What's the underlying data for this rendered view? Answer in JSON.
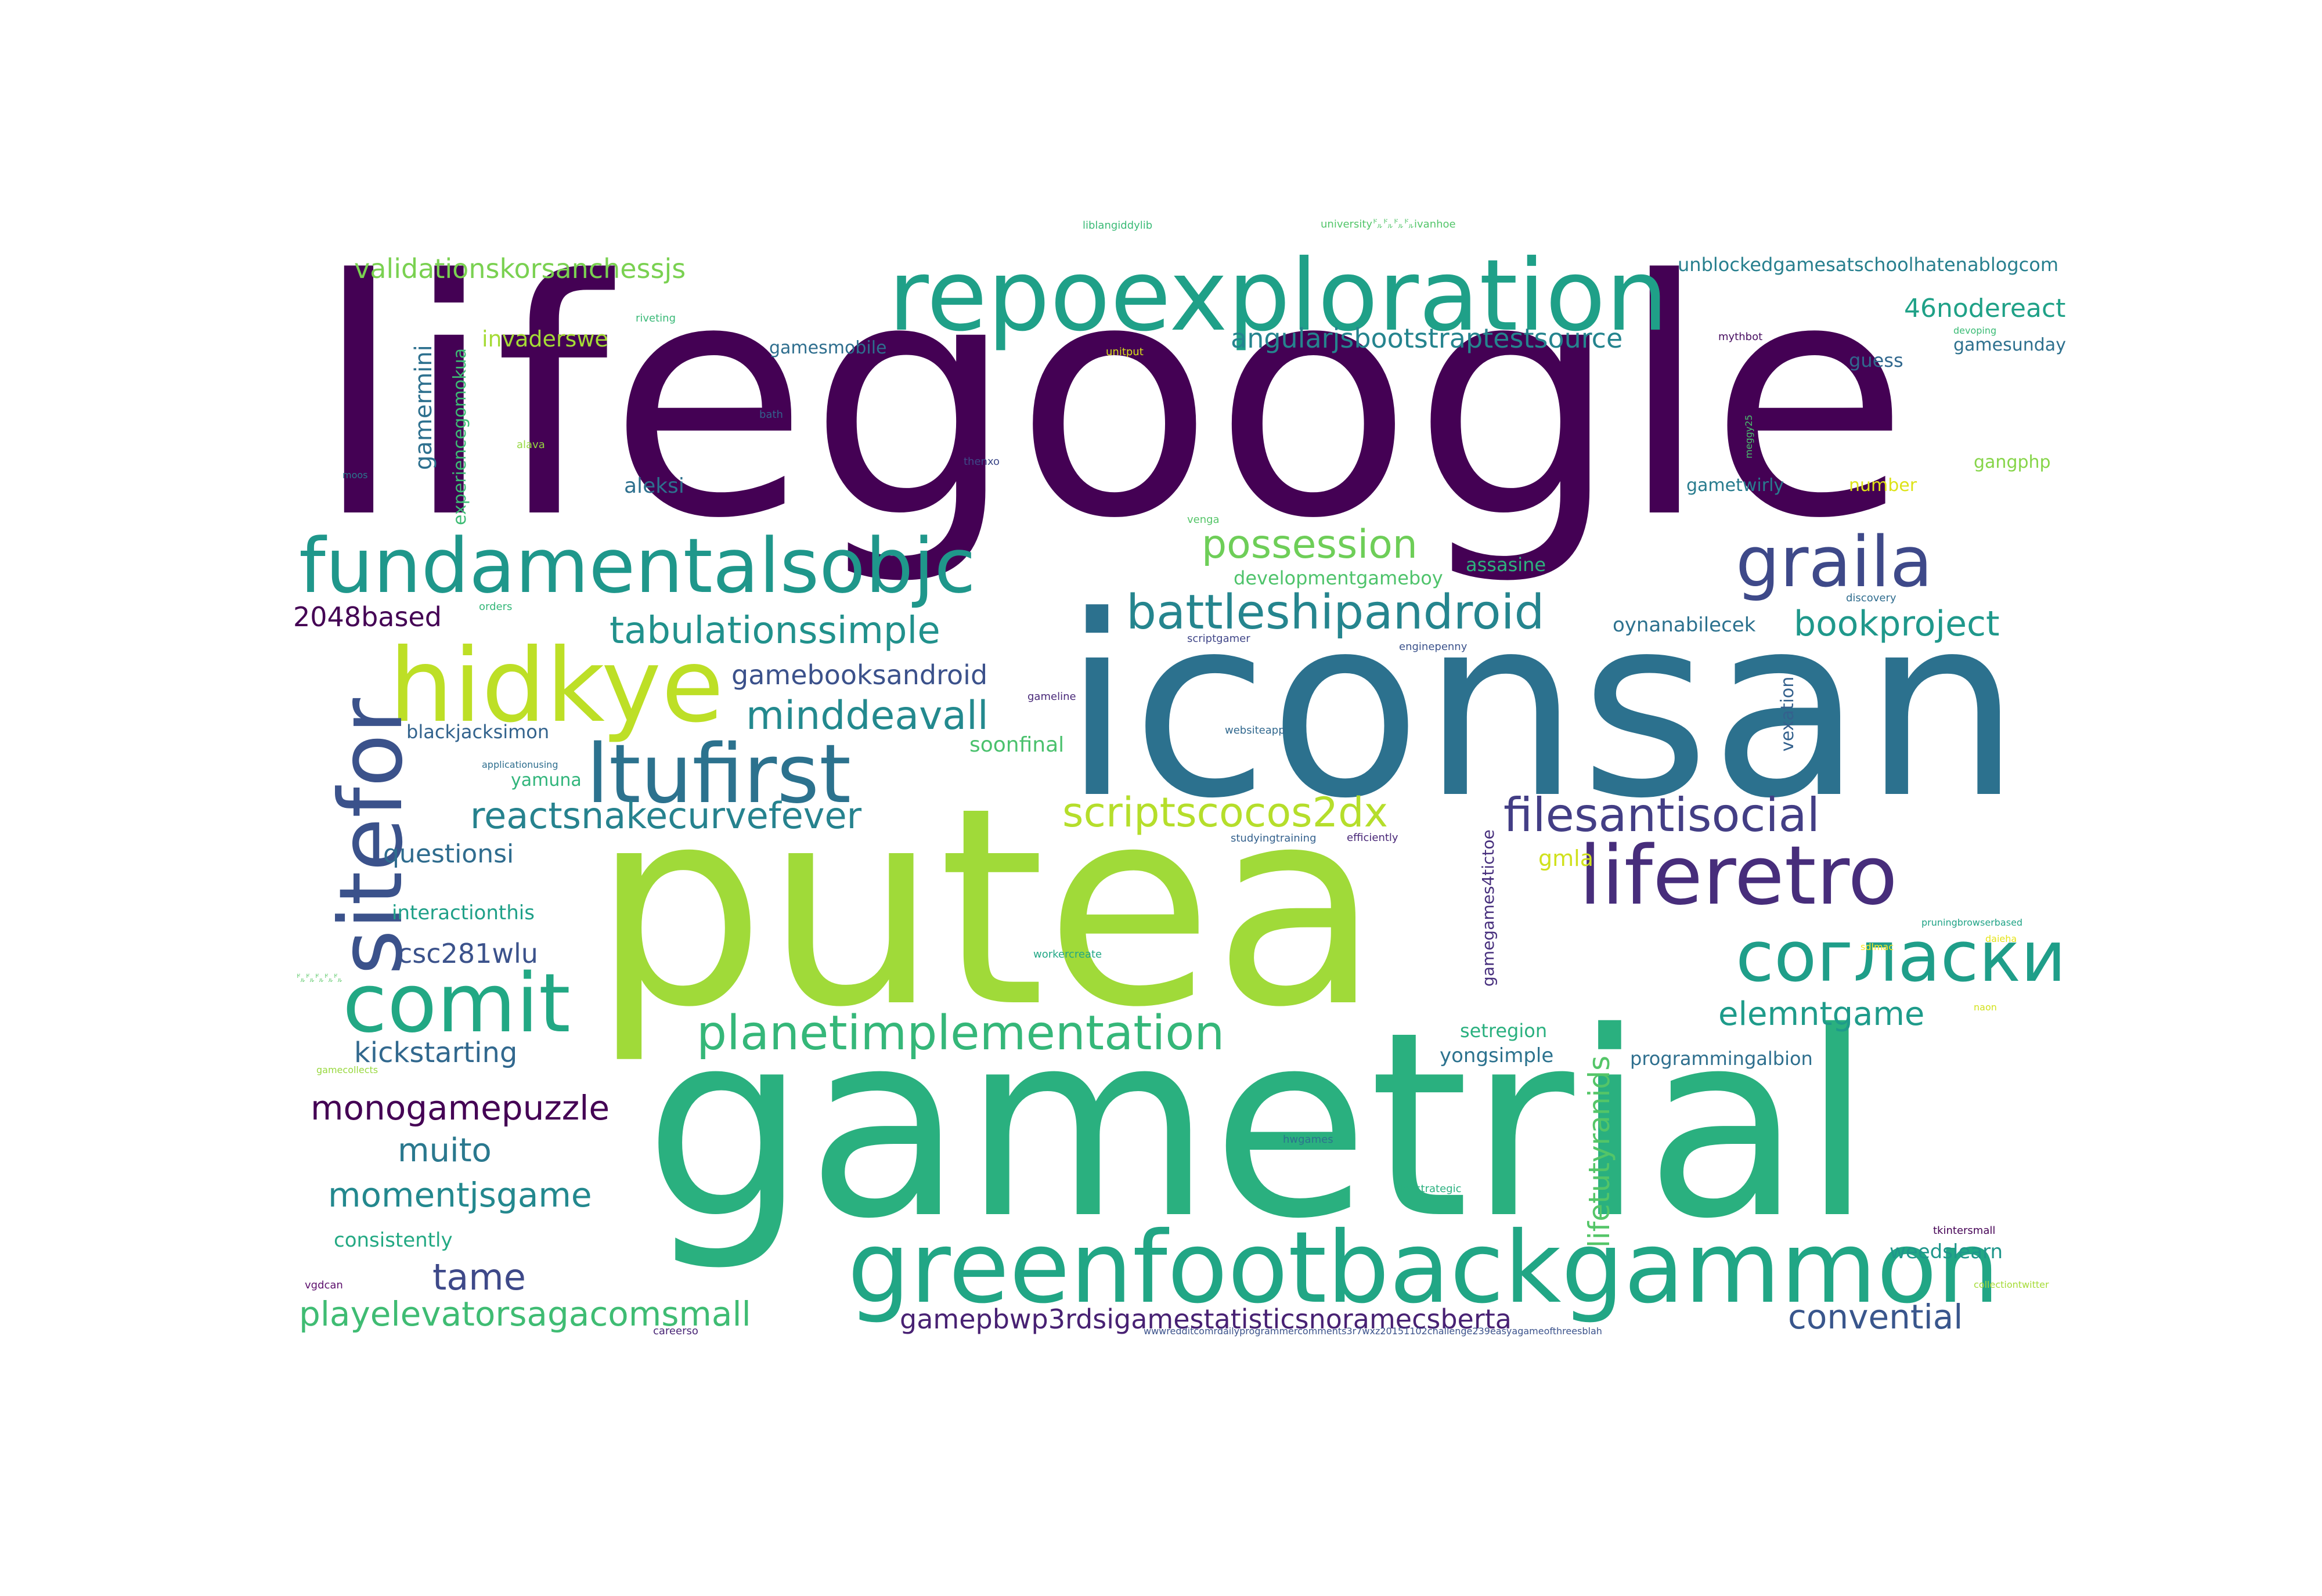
{
  "words": [
    {
      "text": "lifegoogle",
      "color": "#440154"
    },
    {
      "text": "iconsan",
      "color": "#2c718e"
    },
    {
      "text": "putea",
      "color": "#a0da39"
    },
    {
      "text": "gametrial",
      "color": "#2ab07f"
    },
    {
      "text": "greenfootbackgammon",
      "color": "#21a685"
    },
    {
      "text": "repoexploration",
      "color": "#1fa088"
    },
    {
      "text": "fundamentalsobjc",
      "color": "#1f978b"
    },
    {
      "text": "hidkye",
      "color": "#bddf26"
    },
    {
      "text": "sitefor",
      "color": "#3b528b"
    },
    {
      "text": "ltufirst",
      "color": "#2c728e"
    },
    {
      "text": "liferetro",
      "color": "#472d7b"
    },
    {
      "text": "graila",
      "color": "#3e4989"
    },
    {
      "text": "comit",
      "color": "#22a884"
    },
    {
      "text": "согласки",
      "color": "#1f9e89"
    },
    {
      "text": "battleshipandroid",
      "color": "#25858e"
    },
    {
      "text": "scriptscocos2dx",
      "color": "#b5de2b"
    },
    {
      "text": "filesantisocial",
      "color": "#433e85"
    },
    {
      "text": "planetimplementation",
      "color": "#35b779"
    },
    {
      "text": "reactsnakecurvefever",
      "color": "#26828e"
    },
    {
      "text": "minddeavall",
      "color": "#23898e"
    },
    {
      "text": "tabulationssimple",
      "color": "#21918c"
    },
    {
      "text": "possession",
      "color": "#6ece58"
    },
    {
      "text": "bookproject",
      "color": "#1f988b"
    },
    {
      "text": "angularjsbootstraptestsource",
      "color": "#25848e"
    },
    {
      "text": "validationskorsanchessjs",
      "color": "#7ad151"
    },
    {
      "text": "unblockedgamesatschoolhatenablogcom",
      "color": "#277f8e"
    },
    {
      "text": "46nodereact",
      "color": "#1fa187"
    },
    {
      "text": "gamebooksandroid",
      "color": "#3b518b"
    },
    {
      "text": "monogamepuzzle",
      "color": "#440154"
    },
    {
      "text": "momentjsgame",
      "color": "#23888e"
    },
    {
      "text": "muito",
      "color": "#2a788e"
    },
    {
      "text": "kickstarting",
      "color": "#31688e"
    },
    {
      "text": "csc281wlu",
      "color": "#3b528b"
    },
    {
      "text": "tame",
      "color": "#3e4989"
    },
    {
      "text": "playelevatorsagacomsmall",
      "color": "#3fbc73"
    },
    {
      "text": "gamepbwp3rdsigamestatisticsnoramecsberta",
      "color": "#482173"
    },
    {
      "text": "convential",
      "color": "#39568c"
    },
    {
      "text": "elemntgame",
      "color": "#1e9b8a"
    },
    {
      "text": "lifetutyranids",
      "color": "#54c568"
    },
    {
      "text": "2048based",
      "color": "#440154"
    },
    {
      "text": "questionsi",
      "color": "#2f6c8e"
    },
    {
      "text": "interactionthis",
      "color": "#1fa088"
    },
    {
      "text": "consistently",
      "color": "#23a983"
    },
    {
      "text": "blackjacksimon",
      "color": "#33638d"
    },
    {
      "text": "yamuna",
      "color": "#31b57b"
    },
    {
      "text": "soonfinal",
      "color": "#4ac16d"
    },
    {
      "text": "aleksi",
      "color": "#2d708e"
    },
    {
      "text": "invaderswe",
      "color": "#a5db36"
    },
    {
      "text": "gamermini",
      "color": "#2d708e"
    },
    {
      "text": "experiencegomokua",
      "color": "#3dbc74"
    },
    {
      "text": "gamesmobile",
      "color": "#2e6e8e"
    },
    {
      "text": "developmentgameboy",
      "color": "#4ec36b"
    },
    {
      "text": "assasine",
      "color": "#2db27d"
    },
    {
      "text": "oynanabilecek",
      "color": "#2c718e"
    },
    {
      "text": "gmla",
      "color": "#d0e11c"
    },
    {
      "text": "setregion",
      "color": "#2ab07f"
    },
    {
      "text": "yongsimple",
      "color": "#2c728e"
    },
    {
      "text": "programmingalbion",
      "color": "#2e6f8e"
    },
    {
      "text": "gamegames4tictoe",
      "color": "#472f7d"
    },
    {
      "text": "vexation",
      "color": "#34618d"
    },
    {
      "text": "weedslearn",
      "color": "#1f968b"
    },
    {
      "text": "guess",
      "color": "#31688e"
    },
    {
      "text": "number",
      "color": "#dde318"
    },
    {
      "text": "gamesunday",
      "color": "#2d708e"
    },
    {
      "text": "gangphp",
      "color": "#86d549"
    },
    {
      "text": "gametwirly",
      "color": "#287c8e"
    },
    {
      "text": "riveting",
      "color": "#39b977"
    },
    {
      "text": "liblangiddylib",
      "color": "#3aba76"
    },
    {
      "text": "university㌦㌦㌦㌦ivanhoe",
      "color": "#52c569"
    },
    {
      "text": "mythbot",
      "color": "#470d60"
    },
    {
      "text": "devoping",
      "color": "#3bbb75"
    },
    {
      "text": "meggy25",
      "color": "#4ac16d"
    },
    {
      "text": "unitput",
      "color": "#d8e219"
    },
    {
      "text": "bath",
      "color": "#33628d"
    },
    {
      "text": "alava",
      "color": "#95d840"
    },
    {
      "text": "moos",
      "color": "#2a788e"
    },
    {
      "text": "thenxo",
      "color": "#3e4989"
    },
    {
      "text": "venga",
      "color": "#54c568"
    },
    {
      "text": "orders",
      "color": "#35b779"
    },
    {
      "text": "discovery",
      "color": "#2f6c8e"
    },
    {
      "text": "scriptgamer",
      "color": "#404688"
    },
    {
      "text": "enginepenny",
      "color": "#3b528b"
    },
    {
      "text": "gameline",
      "color": "#482878"
    },
    {
      "text": "websiteapp",
      "color": "#31688e"
    },
    {
      "text": "applicationusing",
      "color": "#2e6e8e"
    },
    {
      "text": "studyingtraining",
      "color": "#34618d"
    },
    {
      "text": "efficiently",
      "color": "#482677"
    },
    {
      "text": "pruningbrowserbased",
      "color": "#20a386"
    },
    {
      "text": "daieha",
      "color": "#e5e419"
    },
    {
      "text": "㌦㌦㌦㌦㌦",
      "color": "#58c765"
    },
    {
      "text": "workercreate",
      "color": "#22a785"
    },
    {
      "text": "sdlmac",
      "color": "#fde725"
    },
    {
      "text": "naon",
      "color": "#d2e21b"
    },
    {
      "text": "gamecollects",
      "color": "#98d83e"
    },
    {
      "text": "hwgames",
      "color": "#2c728e"
    },
    {
      "text": "devstrategic",
      "color": "#2ab07f"
    },
    {
      "text": "tkintersmall",
      "color": "#440154"
    },
    {
      "text": "collectiontwitter",
      "color": "#a5db36"
    },
    {
      "text": "vgdcan",
      "color": "#5b0e6b"
    },
    {
      "text": "careerso",
      "color": "#482475"
    },
    {
      "text": "wwwredditcomrdailyprogrammercomments3r7wxz20151102challenge239easyagameofthreesblah",
      "color": "#3b528b"
    }
  ]
}
